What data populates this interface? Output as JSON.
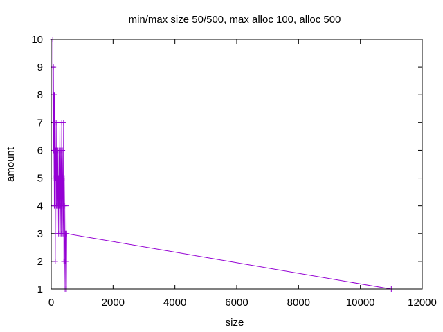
{
  "chart_data": {
    "type": "line",
    "title": "min/max size 50/500, max alloc 100, alloc 500",
    "xlabel": "size",
    "ylabel": "amount",
    "xlim": [
      0,
      12000
    ],
    "ylim": [
      1,
      10
    ],
    "xticks": [
      "0",
      "2000",
      "4000",
      "6000",
      "8000",
      "10000",
      "12000"
    ],
    "yticks": [
      "1",
      "2",
      "3",
      "4",
      "5",
      "6",
      "7",
      "8",
      "9",
      "10"
    ],
    "grid": false,
    "legend": "none",
    "marker": "plus",
    "series": [
      {
        "color": "#9400d3",
        "x": [
          50,
          60,
          70,
          80,
          90,
          100,
          110,
          120,
          130,
          140,
          150,
          160,
          170,
          180,
          190,
          200,
          210,
          220,
          230,
          240,
          250,
          260,
          270,
          280,
          290,
          300,
          310,
          320,
          330,
          340,
          350,
          360,
          370,
          380,
          390,
          400,
          410,
          420,
          430,
          440,
          450,
          460,
          470,
          480,
          490,
          500,
          11000
        ],
        "y": [
          10,
          5,
          9,
          6,
          8,
          4,
          8,
          7,
          2,
          6,
          5,
          7,
          4,
          6,
          3,
          5,
          6,
          4,
          5,
          3,
          6,
          4,
          5,
          7,
          3,
          4,
          6,
          5,
          3,
          7,
          4,
          6,
          5,
          3,
          4,
          7,
          2,
          5,
          4,
          2,
          1,
          3,
          2,
          4,
          1,
          3,
          1
        ]
      }
    ]
  }
}
